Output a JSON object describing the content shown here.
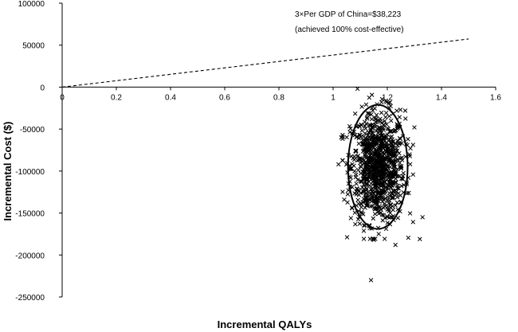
{
  "chart_data": {
    "type": "scatter",
    "title": "",
    "xlabel": "Incremental QALYs",
    "ylabel": "Incremental Cost ($)",
    "xlim": [
      0,
      1.6
    ],
    "ylim": [
      -250000,
      100000
    ],
    "x_ticks": [
      0,
      0.2,
      0.4,
      0.6,
      0.8,
      1,
      1.2,
      1.4,
      1.6
    ],
    "x_tick_labels": [
      "0",
      "0.2",
      "0.4",
      "0.6",
      "0.8",
      "1",
      "1.2",
      "1.4",
      "1.6"
    ],
    "y_ticks": [
      100000,
      50000,
      0,
      -50000,
      -100000,
      -150000,
      -200000,
      -250000
    ],
    "y_tick_labels": [
      "100000",
      "50000",
      "0",
      "-50000",
      "-100000",
      "-150000",
      "-200000",
      "-250000"
    ],
    "grid": false,
    "marker": "x",
    "threshold_line": {
      "style": "dashed",
      "x": [
        0,
        1.5
      ],
      "y": [
        0,
        57335
      ],
      "wtp_per_qaly": 38223
    },
    "annotation": {
      "line1": "3×Per GDP of China=$38,223",
      "line2": "(achieved 100% cost-effective)"
    },
    "confidence_ellipse": {
      "center": [
        1.165,
        -95000
      ],
      "x_radius": 0.11,
      "y_radius": 74000
    },
    "cloud": {
      "n": 950,
      "x_mean": 1.165,
      "x_sd": 0.05,
      "y_mean": -95000,
      "y_sd": 33000
    },
    "outliers": [
      {
        "x": 1.14,
        "y": -230000
      },
      {
        "x": 1.33,
        "y": -155000
      },
      {
        "x": 1.32,
        "y": -181000
      },
      {
        "x": 1.23,
        "y": -188000
      },
      {
        "x": 1.09,
        "y": -2000
      },
      {
        "x": 1.15,
        "y": -182000
      },
      {
        "x": 1.02,
        "y": -92000
      },
      {
        "x": 1.3,
        "y": -48000
      },
      {
        "x": 1.03,
        "y": -60000
      }
    ]
  }
}
